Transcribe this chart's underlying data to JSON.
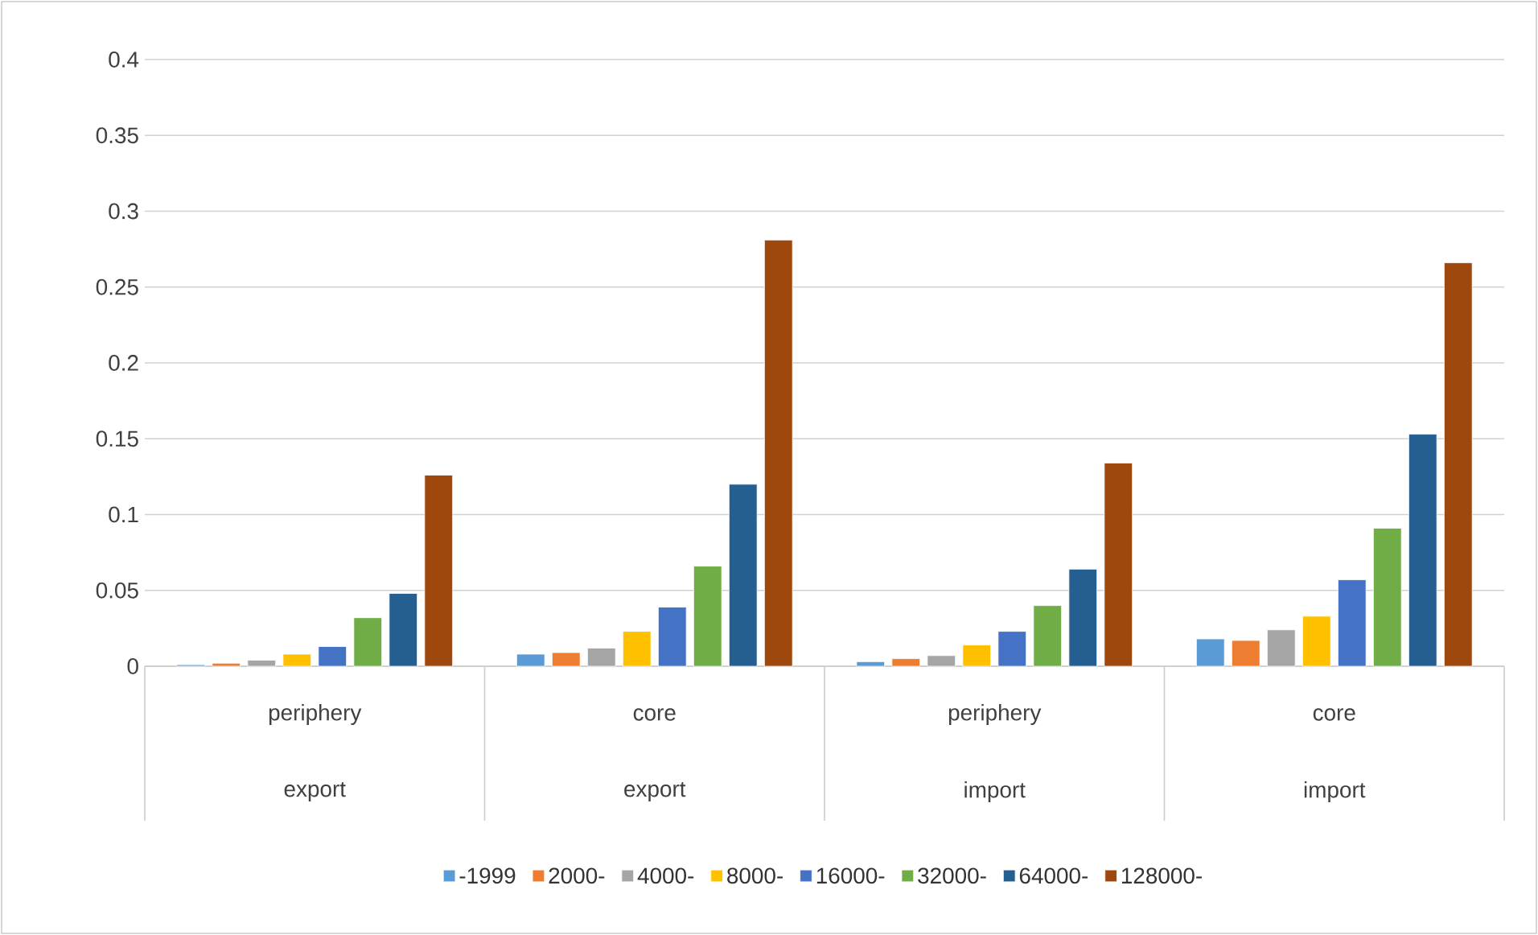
{
  "chart_data": {
    "type": "bar",
    "categories": [
      "periphery",
      "core",
      "periphery",
      "core"
    ],
    "annotations": [
      "export",
      "export",
      "import",
      "import"
    ],
    "series": [
      {
        "name": "-1999",
        "color": "#5b9bd5",
        "values": [
          0.001,
          0.008,
          0.003,
          0.018
        ]
      },
      {
        "name": "2000-",
        "color": "#ed7d31",
        "values": [
          0.002,
          0.009,
          0.005,
          0.017
        ]
      },
      {
        "name": "4000-",
        "color": "#a5a5a5",
        "values": [
          0.004,
          0.012,
          0.007,
          0.024
        ]
      },
      {
        "name": "8000-",
        "color": "#ffc000",
        "values": [
          0.008,
          0.023,
          0.014,
          0.033
        ]
      },
      {
        "name": "16000-",
        "color": "#4472c4",
        "values": [
          0.013,
          0.039,
          0.023,
          0.057
        ]
      },
      {
        "name": "32000-",
        "color": "#70ad47",
        "values": [
          0.032,
          0.066,
          0.04,
          0.091
        ]
      },
      {
        "name": "64000-",
        "color": "#255e91",
        "values": [
          0.048,
          0.12,
          0.064,
          0.153
        ]
      },
      {
        "name": "128000-",
        "color": "#9e480e",
        "values": [
          0.126,
          0.281,
          0.134,
          0.266
        ]
      }
    ],
    "ylim": [
      0,
      0.4
    ],
    "yticks": [
      0,
      0.05,
      0.1,
      0.15,
      0.2,
      0.25,
      0.3,
      0.35,
      0.4
    ],
    "grid": "y",
    "legend": "bottom"
  }
}
